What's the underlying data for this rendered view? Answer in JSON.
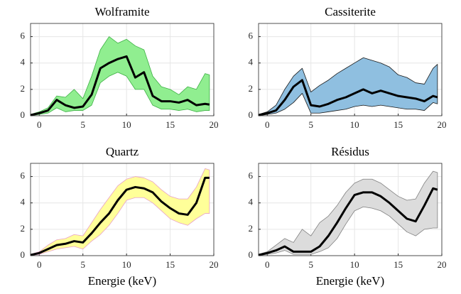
{
  "chart_data": [
    {
      "type": "line",
      "title": "Wolframite",
      "color": "#000000",
      "band_color": "#90ee90",
      "band_edge": "#3cb043",
      "x": [
        -1,
        0,
        1,
        2,
        3,
        4,
        5,
        6,
        7,
        8,
        9,
        10,
        11,
        12,
        13,
        14,
        15,
        16,
        17,
        18,
        19,
        19.5
      ],
      "values": [
        0.05,
        0.2,
        0.4,
        1.2,
        0.8,
        0.6,
        0.7,
        1.6,
        3.6,
        4.0,
        4.3,
        4.5,
        2.9,
        3.3,
        1.5,
        1.1,
        1.1,
        1.0,
        1.2,
        0.8,
        0.9,
        0.85
      ],
      "upper": [
        0.1,
        0.3,
        0.6,
        1.5,
        1.4,
        2.0,
        1.3,
        3.0,
        5.0,
        6.0,
        5.5,
        5.8,
        5.3,
        5.0,
        3.0,
        2.2,
        2.0,
        1.6,
        2.2,
        2.0,
        3.2,
        3.1
      ],
      "lower": [
        0,
        0.1,
        0.2,
        0.6,
        0.3,
        0.4,
        0.4,
        0.8,
        2.5,
        3.0,
        3.3,
        3.0,
        2.0,
        2.0,
        0.8,
        0.5,
        0.5,
        0.4,
        0.5,
        0.3,
        0.4,
        0.4
      ],
      "xlim": [
        -1,
        20
      ],
      "ylim": [
        0,
        7
      ],
      "xticks": [
        0,
        5,
        10,
        15,
        20
      ],
      "yticks": [
        0,
        2,
        4,
        6
      ],
      "grid": true
    },
    {
      "type": "line",
      "title": "Cassiterite",
      "color": "#000000",
      "band_color": "#8fbfe0",
      "band_edge": "#1a1a1a",
      "x": [
        -1,
        0,
        1,
        2,
        3,
        4,
        5,
        6,
        7,
        8,
        9,
        10,
        11,
        12,
        13,
        14,
        15,
        16,
        17,
        18,
        19,
        19.5
      ],
      "values": [
        0.05,
        0.2,
        0.4,
        1.2,
        2.2,
        2.7,
        0.8,
        0.7,
        0.9,
        1.2,
        1.4,
        1.7,
        2.0,
        1.7,
        1.9,
        1.7,
        1.5,
        1.4,
        1.3,
        1.1,
        1.5,
        1.4
      ],
      "upper": [
        0.1,
        0.3,
        0.8,
        2.0,
        3.0,
        3.6,
        1.8,
        2.3,
        2.7,
        3.2,
        3.6,
        4.0,
        4.4,
        4.2,
        4.0,
        3.7,
        3.1,
        2.9,
        2.5,
        2.4,
        3.6,
        3.9
      ],
      "lower": [
        0,
        0.1,
        0.2,
        0.5,
        1.0,
        1.7,
        0.2,
        0.2,
        0.3,
        0.4,
        0.5,
        0.7,
        0.8,
        0.7,
        0.8,
        0.7,
        0.6,
        0.5,
        0.5,
        0.4,
        1.0,
        0.9
      ],
      "xlim": [
        -1,
        20
      ],
      "ylim": [
        0,
        7
      ],
      "xticks": [
        0,
        5,
        10,
        15,
        20
      ],
      "yticks": [
        0,
        2,
        4,
        6
      ],
      "grid": true
    },
    {
      "type": "line",
      "title": "Quartz",
      "xlabel": "Energie (keV)",
      "color": "#000000",
      "band_color": "#ffff99",
      "band_edge": "#e8a0c8",
      "x": [
        -1,
        0,
        1,
        2,
        3,
        4,
        5,
        6,
        7,
        8,
        9,
        10,
        11,
        12,
        13,
        14,
        15,
        16,
        17,
        18,
        19,
        19.5
      ],
      "values": [
        0.05,
        0.2,
        0.5,
        0.8,
        0.9,
        1.1,
        1.0,
        1.7,
        2.5,
        3.2,
        4.2,
        5.0,
        5.2,
        5.1,
        4.8,
        4.1,
        3.6,
        3.2,
        3.1,
        4.0,
        5.9,
        5.9
      ],
      "upper": [
        0.1,
        0.3,
        0.8,
        1.2,
        1.3,
        1.6,
        1.5,
        2.5,
        3.5,
        4.4,
        5.3,
        5.8,
        6.0,
        5.9,
        5.6,
        5.0,
        4.5,
        4.3,
        4.3,
        5.2,
        6.6,
        6.5
      ],
      "lower": [
        0,
        0.1,
        0.3,
        0.5,
        0.6,
        0.7,
        0.5,
        1.1,
        1.6,
        2.3,
        3.2,
        4.2,
        4.4,
        4.4,
        4.0,
        3.4,
        2.8,
        2.5,
        2.3,
        2.8,
        3.2,
        3.2
      ],
      "xlim": [
        -1,
        20
      ],
      "ylim": [
        0,
        7
      ],
      "xticks": [
        0,
        5,
        10,
        15,
        20
      ],
      "yticks": [
        0,
        2,
        4,
        6
      ],
      "grid": true
    },
    {
      "type": "line",
      "title": "Résidus",
      "xlabel": "Energie (keV)",
      "color": "#000000",
      "band_color": "#dcdcdc",
      "band_edge": "#808080",
      "x": [
        -1,
        0,
        1,
        2,
        3,
        4,
        5,
        6,
        7,
        8,
        9,
        10,
        11,
        12,
        13,
        14,
        15,
        16,
        17,
        18,
        19,
        19.5
      ],
      "values": [
        0.05,
        0.2,
        0.4,
        0.7,
        0.3,
        0.3,
        0.3,
        0.7,
        1.5,
        2.5,
        3.6,
        4.6,
        4.8,
        4.8,
        4.5,
        4.0,
        3.4,
        2.8,
        2.6,
        3.8,
        5.1,
        5.0
      ],
      "upper": [
        0.1,
        0.3,
        0.8,
        1.3,
        1.0,
        2.0,
        1.5,
        2.5,
        3.0,
        3.8,
        4.8,
        5.5,
        5.8,
        5.8,
        5.5,
        5.0,
        4.5,
        4.2,
        4.3,
        5.5,
        6.4,
        6.3
      ],
      "lower": [
        0,
        0.1,
        0.2,
        0.4,
        0.1,
        0.1,
        0.1,
        0.3,
        0.6,
        1.3,
        2.4,
        3.4,
        3.7,
        3.6,
        3.4,
        3.0,
        2.4,
        1.8,
        1.5,
        2.0,
        2.1,
        2.1
      ],
      "xlim": [
        -1,
        20
      ],
      "ylim": [
        0,
        7
      ],
      "xticks": [
        0,
        5,
        10,
        15,
        20
      ],
      "yticks": [
        0,
        2,
        4,
        6
      ],
      "grid": true
    }
  ]
}
